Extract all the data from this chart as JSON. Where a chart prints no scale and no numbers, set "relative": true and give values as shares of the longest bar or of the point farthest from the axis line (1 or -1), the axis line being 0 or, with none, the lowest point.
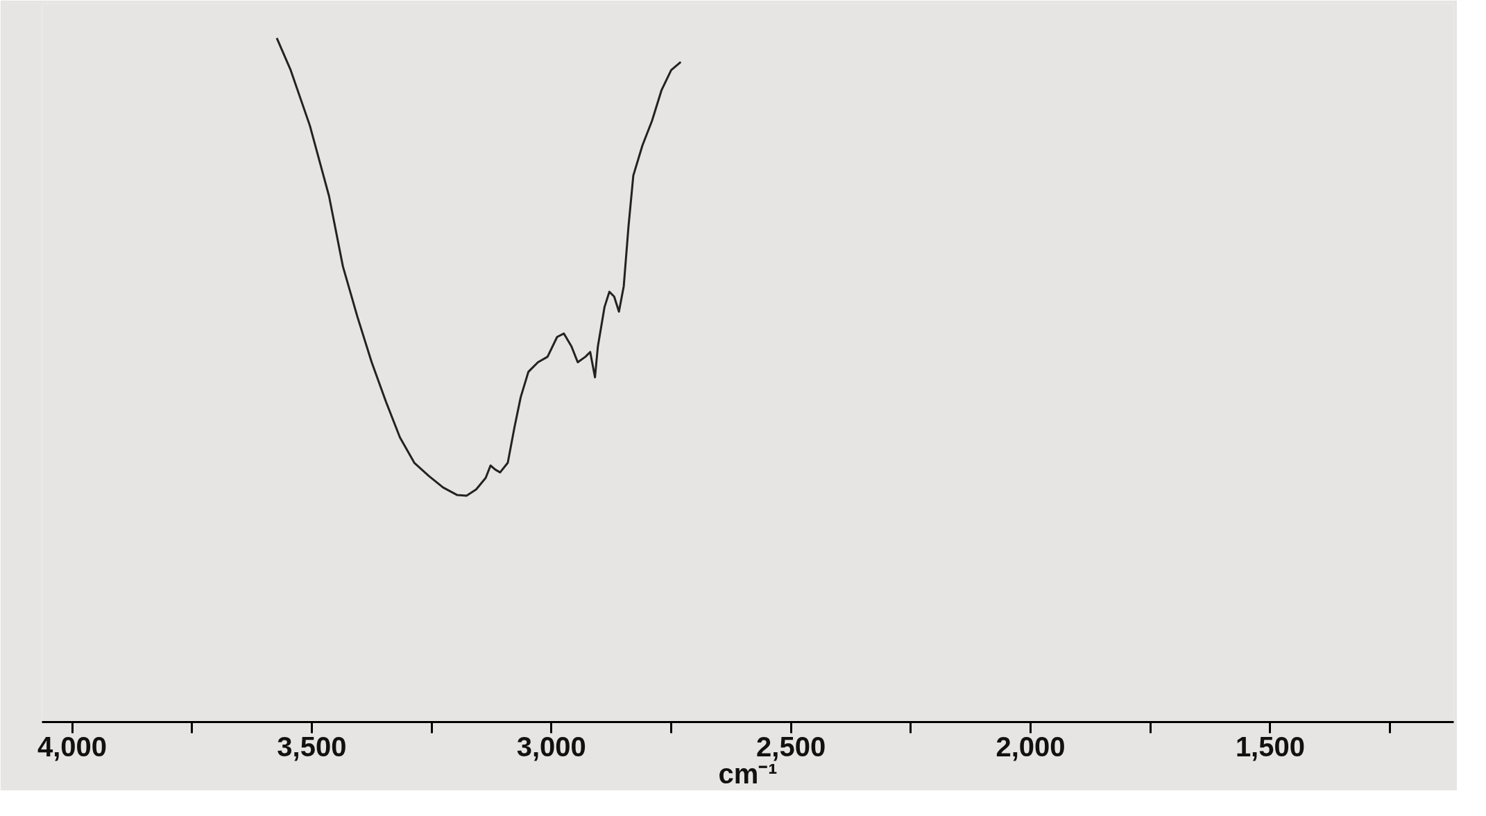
{
  "chart_data": {
    "type": "line",
    "relative": true,
    "xlabel": "cm⁻¹",
    "xlim": [
      4063,
      1117
    ],
    "xticks": [
      {
        "value": 4000,
        "label": "4,000"
      },
      {
        "value": 3750,
        "label": null
      },
      {
        "value": 3500,
        "label": "3,500"
      },
      {
        "value": 3250,
        "label": null
      },
      {
        "value": 3000,
        "label": "3,000"
      },
      {
        "value": 2750,
        "label": null
      },
      {
        "value": 2500,
        "label": "2,500"
      },
      {
        "value": 2250,
        "label": null
      },
      {
        "value": 2000,
        "label": "2,000"
      },
      {
        "value": 1750,
        "label": null
      },
      {
        "value": 1500,
        "label": "1,500"
      },
      {
        "value": 1250,
        "label": null
      }
    ],
    "x": [
      3573,
      3544,
      3504,
      3464,
      3435,
      3405,
      3375,
      3345,
      3316,
      3286,
      3256,
      3226,
      3197,
      3177,
      3157,
      3137,
      3127,
      3117,
      3107,
      3091,
      3077,
      3064,
      3048,
      3028,
      3008,
      2988,
      2974,
      2958,
      2945,
      2929,
      2919,
      2909,
      2903,
      2889,
      2879,
      2869,
      2859,
      2849,
      2839,
      2829,
      2810,
      2790,
      2770,
      2750,
      2730
    ],
    "series": [
      {
        "color": "#222222",
        "values": [
          1.0,
          0.953,
          0.872,
          0.769,
          0.666,
          0.593,
          0.526,
          0.468,
          0.416,
          0.379,
          0.36,
          0.343,
          0.332,
          0.331,
          0.34,
          0.357,
          0.375,
          0.369,
          0.365,
          0.379,
          0.431,
          0.475,
          0.512,
          0.526,
          0.534,
          0.563,
          0.568,
          0.549,
          0.526,
          0.534,
          0.541,
          0.504,
          0.549,
          0.607,
          0.629,
          0.622,
          0.6,
          0.637,
          0.725,
          0.799,
          0.843,
          0.879,
          0.924,
          0.953,
          0.965
        ]
      }
    ]
  }
}
